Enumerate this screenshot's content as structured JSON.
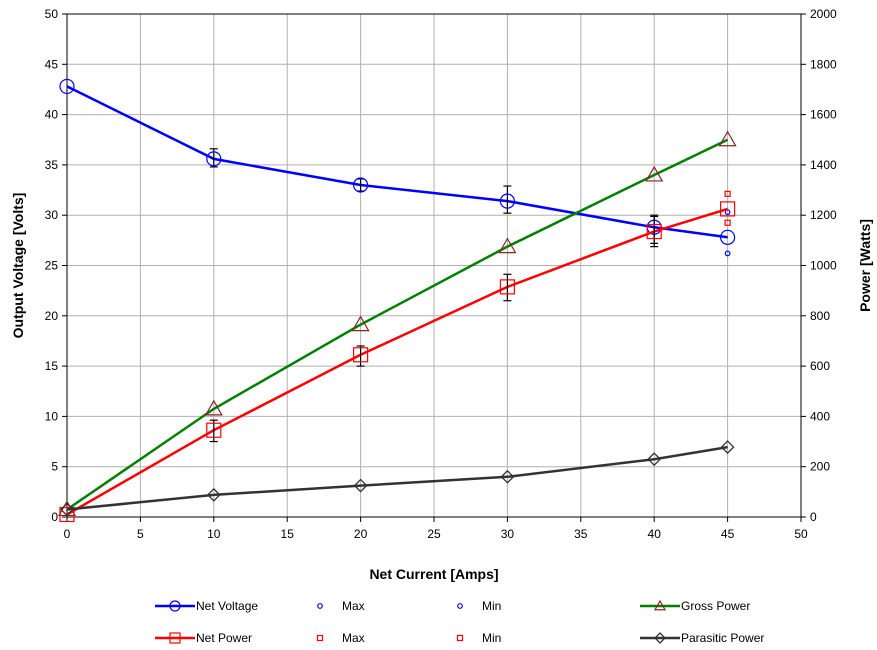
{
  "chart_data": {
    "type": "line",
    "title": "",
    "xlabel": "Net Current [Amps]",
    "ylabel_left": "Output Voltage [Volts]",
    "ylabel_right": "Power [Watts]",
    "xlim": [
      0,
      50
    ],
    "ylim_left": [
      0,
      50
    ],
    "ylim_right": [
      0,
      2000
    ],
    "grid": true,
    "legend_position": "bottom",
    "x_ticks": [
      0,
      5,
      10,
      15,
      20,
      25,
      30,
      35,
      40,
      45,
      50
    ],
    "y_left_ticks": [
      0,
      5,
      10,
      15,
      20,
      25,
      30,
      35,
      40,
      45,
      50
    ],
    "y_right_ticks": [
      0,
      200,
      400,
      600,
      800,
      1000,
      1200,
      1400,
      1600,
      1800,
      2000
    ],
    "series": [
      {
        "name": "Net Voltage",
        "axis": "left",
        "color": "#0000ff",
        "marker": "circle",
        "line": true,
        "points": [
          [
            0,
            42.8
          ],
          [
            10,
            35.6
          ],
          [
            20,
            33.0
          ],
          [
            30,
            31.4
          ],
          [
            40,
            28.8
          ],
          [
            45,
            27.8
          ]
        ],
        "error_bars": [
          null,
          [
            34.8,
            36.6
          ],
          [
            32.4,
            33.6
          ],
          [
            30.2,
            32.9
          ],
          [
            27.2,
            30.0
          ],
          null
        ]
      },
      {
        "name": "Max",
        "axis": "left",
        "color": "#0000ff",
        "marker": "small-circle",
        "line": false,
        "points": [
          [
            45,
            30.3
          ]
        ]
      },
      {
        "name": "Min",
        "axis": "left",
        "color": "#0000ff",
        "marker": "small-circle",
        "line": false,
        "points": [
          [
            45,
            26.2
          ]
        ]
      },
      {
        "name": "Gross Power",
        "axis": "right",
        "color": "#008000",
        "marker_color": "#8b2323",
        "marker": "triangle",
        "line": true,
        "points": [
          [
            0,
            30
          ],
          [
            10,
            430
          ],
          [
            20,
            765
          ],
          [
            30,
            1075
          ],
          [
            40,
            1360
          ],
          [
            45,
            1500
          ]
        ]
      },
      {
        "name": "Net Power",
        "axis": "right",
        "color": "#ff0000",
        "marker": "square",
        "line": true,
        "points": [
          [
            0,
            10
          ],
          [
            10,
            345
          ],
          [
            20,
            645
          ],
          [
            30,
            915
          ],
          [
            40,
            1135
          ],
          [
            45,
            1225
          ]
        ],
        "error_bars": [
          null,
          [
            300,
            385
          ],
          [
            600,
            680
          ],
          [
            860,
            965
          ],
          [
            1075,
            1195
          ],
          null
        ]
      },
      {
        "name": "Max",
        "axis": "right",
        "color": "#ff0000",
        "marker": "small-square",
        "line": false,
        "points": [
          [
            45,
            1285
          ]
        ]
      },
      {
        "name": "Min",
        "axis": "right",
        "color": "#ff0000",
        "marker": "small-square",
        "line": false,
        "points": [
          [
            45,
            1170
          ]
        ]
      },
      {
        "name": "Parasitic Power",
        "axis": "right",
        "color": "#333333",
        "marker": "diamond",
        "line": true,
        "points": [
          [
            0,
            30
          ],
          [
            10,
            88
          ],
          [
            20,
            125
          ],
          [
            30,
            160
          ],
          [
            40,
            230
          ],
          [
            45,
            278
          ]
        ]
      }
    ],
    "legend": [
      {
        "label": "Net Voltage",
        "series": 0
      },
      {
        "label": "Max",
        "series": 1
      },
      {
        "label": "Min",
        "series": 2
      },
      {
        "label": "Gross Power",
        "series": 3
      },
      {
        "label": "Net Power",
        "series": 4
      },
      {
        "label": "Max",
        "series": 5
      },
      {
        "label": "Min",
        "series": 6
      },
      {
        "label": "Parasitic Power",
        "series": 7
      }
    ]
  }
}
